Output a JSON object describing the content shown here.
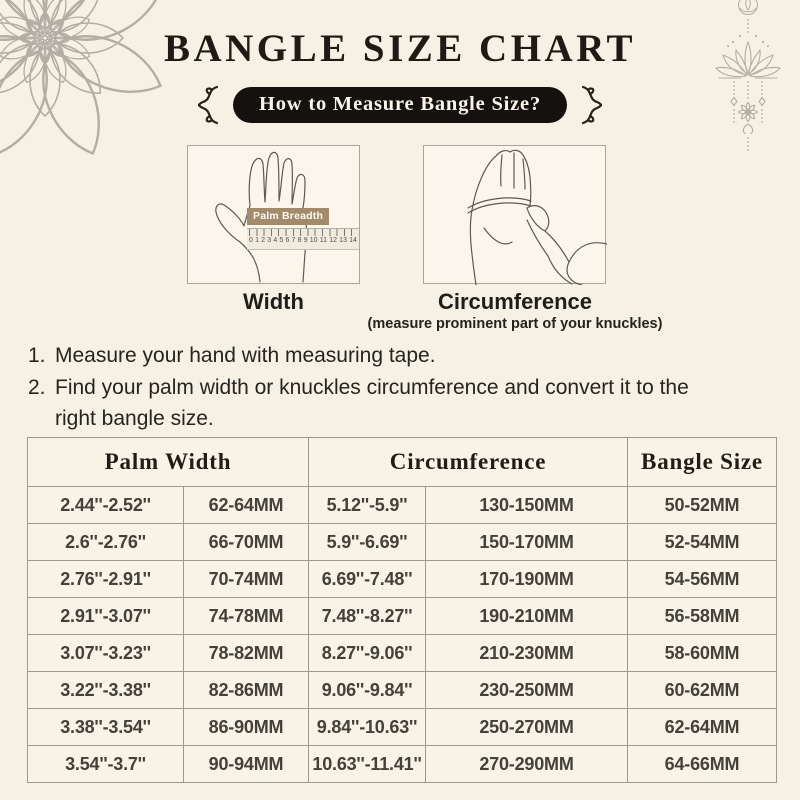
{
  "header": {
    "title": "BANGLE SIZE CHART",
    "badge_label": "How to Measure Bangle Size?"
  },
  "illustrations": {
    "width_label": "Width",
    "circumference_label": "Circumference",
    "circumference_note": "(measure prominent part of your knuckles)",
    "palm_tag": "Palm Breadth",
    "ruler_numbers": [
      "0",
      "1",
      "2",
      "3",
      "4",
      "5",
      "6",
      "7",
      "8",
      "9",
      "10",
      "11",
      "12",
      "13",
      "14"
    ]
  },
  "instructions": [
    {
      "num": "1.",
      "text": "Measure your hand with measuring tape."
    },
    {
      "num": "2.",
      "text": "Find your palm width or knuckles circumference and convert it to the right bangle size."
    }
  ],
  "chart_data": {
    "type": "table",
    "title": "BANGLE SIZE CHART",
    "column_groups": [
      {
        "label": "Palm Width",
        "colspan": 2
      },
      {
        "label": "Circumference",
        "colspan": 2
      },
      {
        "label": "Bangle Size",
        "colspan": 1
      }
    ],
    "rows": [
      [
        "2.44''-2.52''",
        "62-64MM",
        "5.12''-5.9''",
        "130-150MM",
        "50-52MM"
      ],
      [
        "2.6''-2.76''",
        "66-70MM",
        "5.9''-6.69''",
        "150-170MM",
        "52-54MM"
      ],
      [
        "2.76''-2.91''",
        "70-74MM",
        "6.69''-7.48''",
        "170-190MM",
        "54-56MM"
      ],
      [
        "2.91''-3.07''",
        "74-78MM",
        "7.48''-8.27''",
        "190-210MM",
        "56-58MM"
      ],
      [
        "3.07''-3.23''",
        "78-82MM",
        "8.27''-9.06''",
        "210-230MM",
        "58-60MM"
      ],
      [
        "3.22''-3.38''",
        "82-86MM",
        "9.06''-9.84''",
        "230-250MM",
        "60-62MM"
      ],
      [
        "3.38''-3.54''",
        "86-90MM",
        "9.84''-10.63''",
        "250-270MM",
        "62-64MM"
      ],
      [
        "3.54''-3.7''",
        "90-94MM",
        "10.63''-11.41''",
        "270-290MM",
        "64-66MM"
      ]
    ]
  },
  "colors": {
    "background": "#f6f1e5",
    "ink": "#1f1a14",
    "badge_bg": "#15110e",
    "badge_text": "#f8f4ea",
    "table_border": "#9d998e",
    "cell_text": "#434139",
    "palm_tag_bg": "#a38a6a",
    "ornament_gray": "#b2aea4"
  }
}
